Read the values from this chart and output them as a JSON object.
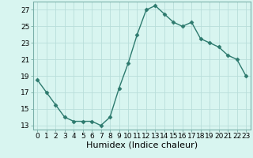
{
  "x": [
    0,
    1,
    2,
    3,
    4,
    5,
    6,
    7,
    8,
    9,
    10,
    11,
    12,
    13,
    14,
    15,
    16,
    17,
    18,
    19,
    20,
    21,
    22,
    23
  ],
  "y": [
    18.5,
    17.0,
    15.5,
    14.0,
    13.5,
    13.5,
    13.5,
    13.0,
    14.0,
    17.5,
    20.5,
    24.0,
    27.0,
    27.5,
    26.5,
    25.5,
    25.0,
    25.5,
    23.5,
    23.0,
    22.5,
    21.5,
    21.0,
    19.0
  ],
  "xlabel": "Humidex (Indice chaleur)",
  "ylim": [
    12.5,
    28.0
  ],
  "xlim": [
    -0.5,
    23.5
  ],
  "yticks": [
    13,
    15,
    17,
    19,
    21,
    23,
    25,
    27
  ],
  "xticks": [
    0,
    1,
    2,
    3,
    4,
    5,
    6,
    7,
    8,
    9,
    10,
    11,
    12,
    13,
    14,
    15,
    16,
    17,
    18,
    19,
    20,
    21,
    22,
    23
  ],
  "line_color": "#2d7a6e",
  "marker": "D",
  "marker_size": 2.5,
  "bg_color": "#d8f5f0",
  "grid_color": "#b8deda",
  "tick_label_fontsize": 6.5,
  "xlabel_fontsize": 8.0
}
